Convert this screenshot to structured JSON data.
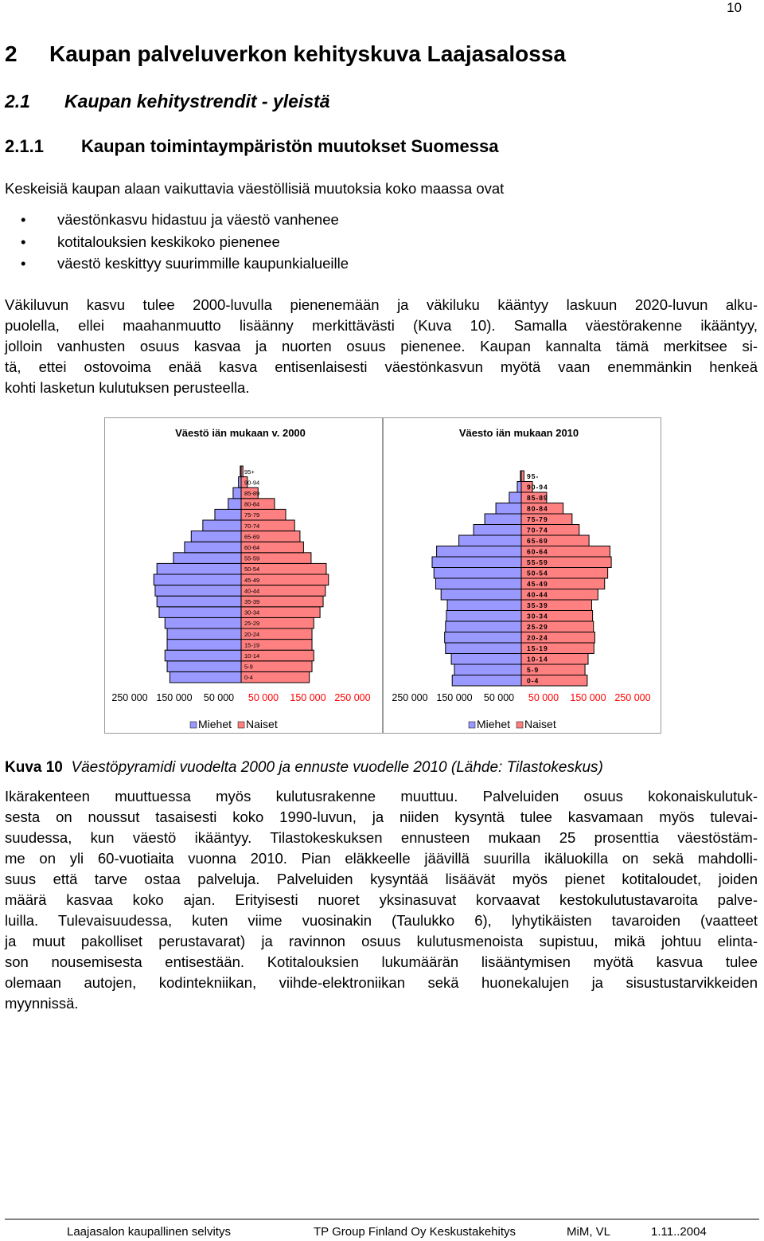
{
  "page_number": "10",
  "heading1": {
    "number": "2",
    "text": "Kaupan palveluverkon kehityskuva Laajasalossa"
  },
  "heading2": {
    "number": "2.1",
    "text": "Kaupan kehitystrendit - yleistä"
  },
  "heading3": {
    "number": "2.1.1",
    "text": "Kaupan toimintaympäristön muutokset Suomessa"
  },
  "intro": "Keskeisiä kaupan alaan vaikuttavia väestöllisiä muutoksia koko maassa ovat",
  "bullets": [
    "väestönkasvu hidastuu ja väestö vanhenee",
    "kotitalouksien keskikoko pienenee",
    "väestö keskittyy suurimmille kaupunkialueille"
  ],
  "paragraph1": [
    "Väkiluvun kasvu tulee 2000-luvulla pienenemään ja väkiluku kääntyy laskuun 2020-luvun alku-",
    "puolella, ellei maahanmuutto lisäänny merkittävästi (Kuva 10). Samalla väestörakenne ikääntyy,",
    "jolloin vanhusten osuus kasvaa ja nuorten osuus pienenee. Kaupan kannalta tämä merkitsee si-",
    "tä, ettei ostovoima enää kasva entisenlaisesti väestönkasvun myötä vaan enemmänkin henkeä",
    "kohti lasketun kulutuksen perusteella."
  ],
  "chart_data": [
    {
      "type": "pyramid",
      "title": "Väestö iän mukaan v. 2000",
      "categories": [
        "0-4",
        "5-9",
        "10-14",
        "15-19",
        "20-24",
        "25-29",
        "30-34",
        "35-39",
        "40-44",
        "45-49",
        "50-54",
        "55-59",
        "60-64",
        "65-69",
        "70-74",
        "75-79",
        "80-84",
        "85-89",
        "90-94",
        "95+"
      ],
      "series": [
        {
          "name": "Miehet",
          "color": "#9999ff",
          "values": [
            -160000,
            -166000,
            -171000,
            -166000,
            -166000,
            -171000,
            -184000,
            -189000,
            -193000,
            -196000,
            -189000,
            -152000,
            -127000,
            -112000,
            -86000,
            -59000,
            -29000,
            -18000,
            -6000,
            -2000
          ]
        },
        {
          "name": "Naiset",
          "color": "#ff8080",
          "values": [
            153000,
            159000,
            163000,
            159000,
            159000,
            163000,
            177000,
            184000,
            189000,
            196000,
            191000,
            157000,
            140000,
            132000,
            120000,
            100000,
            75000,
            38000,
            14000,
            4000
          ]
        }
      ],
      "xlim": [
        -300000,
        300000
      ],
      "xticks": [
        {
          "value": -250000,
          "label": "250 000"
        },
        {
          "value": -150000,
          "label": "150 000"
        },
        {
          "value": -50000,
          "label": "50 000"
        },
        {
          "value": 50000,
          "label": "50 000"
        },
        {
          "value": 150000,
          "label": "150 000"
        },
        {
          "value": 250000,
          "label": "250 000"
        }
      ],
      "legend": "bottom"
    },
    {
      "type": "pyramid",
      "title": "Väesto iän mukaan 2010",
      "categories": [
        "0-4",
        "5-9",
        "10-14",
        "15-19",
        "20-24",
        "25-29",
        "30-34",
        "35-39",
        "40-44",
        "45-49",
        "50-54",
        "55-59",
        "60-64",
        "65-69",
        "70-74",
        "75-79",
        "80-84",
        "85-89",
        "90-94",
        "95-"
      ],
      "series": [
        {
          "name": "Miehet",
          "color": "#9999ff",
          "values": [
            -155000,
            -150000,
            -157000,
            -170000,
            -172000,
            -170000,
            -168000,
            -166000,
            -180000,
            -192000,
            -196000,
            -200000,
            -190000,
            -140000,
            -107000,
            -82000,
            -57000,
            -27000,
            -9000,
            -2000
          ]
        },
        {
          "name": "Naiset",
          "color": "#ff8080",
          "values": [
            148000,
            143000,
            150000,
            163000,
            165000,
            162000,
            160000,
            158000,
            172000,
            187000,
            194000,
            202000,
            199000,
            152000,
            130000,
            114000,
            94000,
            57000,
            25000,
            6000
          ]
        }
      ],
      "xlim": [
        -300000,
        300000
      ],
      "xticks": [
        {
          "value": -250000,
          "label": "250 000"
        },
        {
          "value": -150000,
          "label": "150 000"
        },
        {
          "value": -50000,
          "label": "50 000"
        },
        {
          "value": 50000,
          "label": "50 000"
        },
        {
          "value": 150000,
          "label": "150 000"
        },
        {
          "value": 250000,
          "label": "250 000"
        }
      ],
      "legend": "bottom"
    }
  ],
  "caption": {
    "label": "Kuva 10",
    "text": "Väestöpyramidi vuodelta 2000 ja ennuste vuodelle 2010 (Lähde: Tilastokeskus)"
  },
  "paragraph2": [
    "Ikärakenteen muuttuessa myös kulutusrakenne muuttuu. Palveluiden osuus kokonaiskulutuk-",
    "sesta on noussut tasaisesti koko 1990-luvun, ja niiden kysyntä tulee kasvamaan myös tulevai-",
    "suudessa, kun väestö ikääntyy. Tilastokeskuksen ennusteen mukaan 25 prosenttia väestöstäm-",
    "me on yli 60-vuotiaita vuonna 2010. Pian eläkkeelle jäävillä suurilla ikäluokilla on sekä mahdolli-",
    "suus että tarve ostaa palveluja. Palveluiden kysyntää lisäävät myös pienet kotitaloudet, joiden",
    "määrä kasvaa koko ajan. Erityisesti nuoret yksinasuvat korvaavat kestokulutustavaroita palve-",
    "luilla. Tulevaisuudessa, kuten viime vuosinakin (Taulukko 6), lyhytikäisten tavaroiden (vaatteet",
    "ja muut pakolliset perustavarat) ja ravinnon osuus kulutusmenoista supistuu, mikä johtuu elinta-",
    "son nousemisesta entisestään. Kotitalouksien lukumäärän lisääntymisen myötä kasvua tulee",
    "olemaan autojen, kodintekniikan, viihde-elektroniikan sekä huonekalujen ja sisustustarvikkeiden",
    "myynnissä."
  ],
  "footer": [
    "Laajasalon kaupallinen selvitys",
    "TP Group Finland Oy Keskustakehitys",
    "MiM, VL",
    "1.11..2004"
  ]
}
